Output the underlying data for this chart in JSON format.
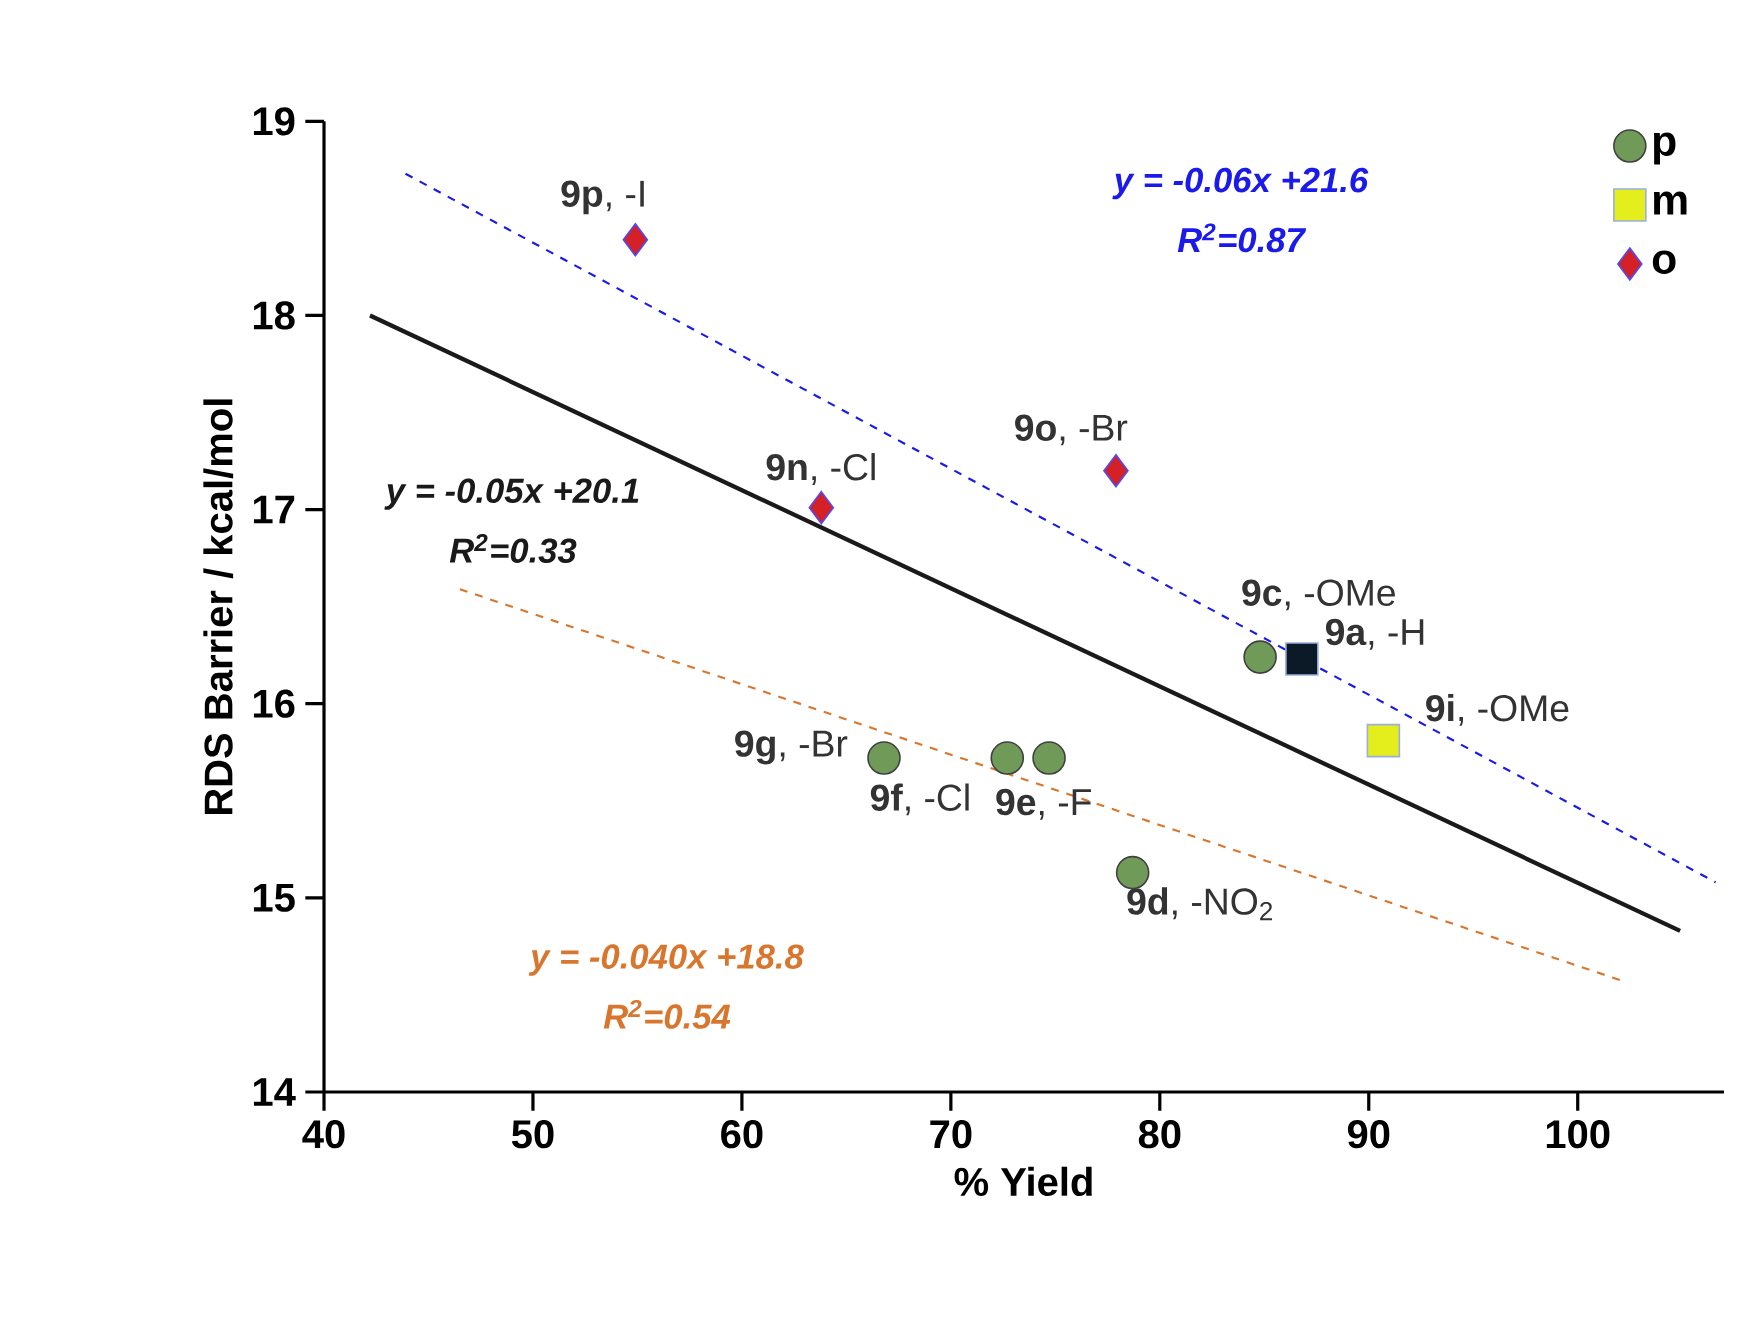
{
  "chart_data": {
    "type": "scatter",
    "xlabel": "% Yield",
    "ylabel": "RDS Barrier / kcal/mol",
    "xlim": [
      40,
      107
    ],
    "ylim": [
      14,
      19
    ],
    "xticks": [
      40,
      50,
      60,
      70,
      80,
      90,
      100
    ],
    "yticks": [
      14,
      15,
      16,
      17,
      18,
      19
    ],
    "legend": "top right",
    "series": [
      {
        "name": "p",
        "marker": "circle",
        "color": "#6f9a57",
        "x": [
          84.8,
          66.8,
          72.7,
          74.7,
          78.7
        ],
        "values": [
          16.24,
          15.72,
          15.72,
          15.72,
          15.13
        ]
      },
      {
        "name": "m",
        "marker": "square",
        "color": "#e3ee1c",
        "x": [
          90.7
        ],
        "values": [
          15.81
        ]
      },
      {
        "name": "o",
        "marker": "diamond",
        "color": "#d42027",
        "x": [
          54.9,
          63.8,
          77.9
        ],
        "values": [
          18.39,
          17.01,
          17.2
        ]
      },
      {
        "marker": "square",
        "color": "#0b1a26",
        "x": [
          86.8
        ],
        "values": [
          16.23
        ]
      },
      {
        "name": "y = -0.06x +21.6",
        "type": "line",
        "line_style": "dashed",
        "color": "#1a1aeb",
        "x": [
          43.9,
          106.6
        ],
        "values": [
          18.73,
          15.08
        ]
      },
      {
        "name": "y = -0.05x +20.1",
        "type": "line",
        "line_style": "solid",
        "color": "#1a1a1a",
        "x": [
          42.2,
          104.9
        ],
        "values": [
          18.0,
          14.83
        ]
      },
      {
        "name": "y = -0.040x +18.8",
        "type": "line",
        "line_style": "dashed",
        "color": "#d9762e",
        "x": [
          46.5,
          102.2
        ],
        "values": [
          16.59,
          14.57
        ]
      }
    ],
    "annotations": [
      "R$^{2}$=0.87",
      "R$^{2}$=0.33",
      "R$^{2}$=0.54",
      {
        "text": "**9c**, -OMe",
        "x": 84.8,
        "y": 16.24
      },
      {
        "text": "**9g**, -Br",
        "x": 66.8,
        "y": 15.72
      },
      {
        "text": "**9f**, -Cl",
        "x": 72.7,
        "y": 15.72
      },
      {
        "text": "**9e**, -F",
        "x": 74.7,
        "y": 15.72
      },
      {
        "text": "**9d**, -NO$_{2}$",
        "x": 78.7,
        "y": 15.13
      },
      {
        "text": "**9i**, -OMe",
        "x": 90.7,
        "y": 15.81
      },
      {
        "text": "**9p**, -I",
        "x": 54.9,
        "y": 18.39
      },
      {
        "text": "**9n**, -Cl",
        "x": 63.8,
        "y": 17.01
      },
      {
        "text": "**9o**, -Br",
        "x": 77.9,
        "y": 17.2
      },
      {
        "text": "**9a**, -H",
        "x": 86.8,
        "y": 16.23
      }
    ]
  }
}
